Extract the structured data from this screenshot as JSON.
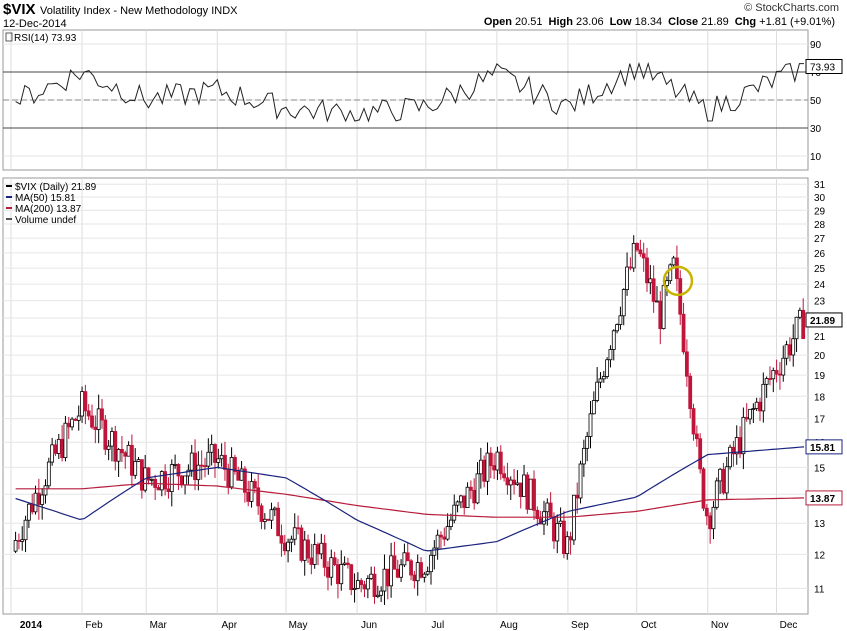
{
  "header": {
    "symbol": "$VIX",
    "name": "Volatility Index - New Methodology",
    "exchange": "INDX",
    "date": "12-Dec-2014",
    "logo": "© StockCharts.com",
    "ohlc": [
      {
        "label": "Open",
        "value": "20.51"
      },
      {
        "label": "High",
        "value": "23.06"
      },
      {
        "label": "Low",
        "value": "18.34"
      },
      {
        "label": "Close",
        "value": "21.89"
      },
      {
        "label": "Chg",
        "value": "+1.81 (+9.01%)"
      }
    ]
  },
  "rsi_panel": {
    "label": "RSI(14) 73.93",
    "current": "73.93",
    "ticks": [
      "90",
      "70",
      "50",
      "30",
      "10"
    ],
    "levels": [
      70,
      30
    ],
    "ylim": [
      0,
      100
    ]
  },
  "price_panel": {
    "legend": [
      {
        "text": "$VIX (Daily) 21.89",
        "color": "#000000"
      },
      {
        "text": "MA(50) 15.81",
        "color": "#1a237e"
      },
      {
        "text": "MA(200) 13.87",
        "color": "#b71c3c"
      },
      {
        "text": "Volume undef",
        "color": "#555555"
      }
    ],
    "y_ticks": [
      "31",
      "30",
      "29",
      "28",
      "27",
      "26",
      "25",
      "24",
      "23",
      "22",
      "21",
      "20",
      "19",
      "18",
      "17",
      "16",
      "15",
      "14",
      "13",
      "12",
      "11"
    ],
    "price_tag": "21.89",
    "ma50_tag": "15.81",
    "ma200_tag": "13.87",
    "log_scale": true,
    "ylim": [
      10.3,
      31.5
    ]
  },
  "x_axis": {
    "months": [
      "2014",
      "Feb",
      "Mar",
      "Apr",
      "May",
      "Jun",
      "Jul",
      "Aug",
      "Sep",
      "Oct",
      "Nov",
      "Dec"
    ]
  },
  "colors": {
    "up": "#000000",
    "down": "#c0153a",
    "ma50": "#1a237e",
    "ma200": "#b71c3c",
    "highlight_circle": "#c8b400"
  },
  "chart_data": {
    "type": "line",
    "title": "$VIX Volatility Index - New Methodology",
    "xlabel": "",
    "ylabel": "",
    "series": [
      {
        "name": "$VIX (Daily)",
        "x": [
          "2014-01",
          "2014-02",
          "2014-03",
          "2014-04",
          "2014-05",
          "2014-06",
          "2014-07",
          "2014-08",
          "2014-09",
          "2014-10",
          "2014-11",
          "2014-12-12"
        ],
        "values": [
          12.1,
          17.5,
          14.5,
          15.3,
          12.6,
          11.1,
          11.8,
          15.5,
          12.2,
          26.3,
          13.2,
          21.89
        ]
      },
      {
        "name": "MA(50)",
        "x": [
          "2014-01",
          "2014-02",
          "2014-03",
          "2014-04",
          "2014-05",
          "2014-06",
          "2014-07",
          "2014-08",
          "2014-09",
          "2014-10",
          "2014-11",
          "2014-12-12"
        ],
        "values": [
          13.9,
          13.1,
          14.6,
          15.0,
          14.6,
          13.1,
          12.1,
          12.4,
          13.4,
          13.9,
          15.5,
          15.81
        ]
      },
      {
        "name": "MA(200)",
        "x": [
          "2014-01",
          "2014-02",
          "2014-03",
          "2014-04",
          "2014-05",
          "2014-06",
          "2014-07",
          "2014-08",
          "2014-09",
          "2014-10",
          "2014-11",
          "2014-12-12"
        ],
        "values": [
          14.2,
          14.2,
          14.4,
          14.3,
          14.0,
          13.6,
          13.3,
          13.2,
          13.2,
          13.4,
          13.8,
          13.87
        ]
      },
      {
        "name": "RSI(14)",
        "x": [
          "2014-01",
          "2014-02",
          "2014-03",
          "2014-04",
          "2014-05",
          "2014-06",
          "2014-07",
          "2014-08",
          "2014-09",
          "2014-10",
          "2014-11",
          "2014-12-12"
        ],
        "values": [
          48,
          70,
          50,
          57,
          44,
          40,
          45,
          68,
          45,
          74,
          42,
          73.93
        ]
      }
    ]
  }
}
